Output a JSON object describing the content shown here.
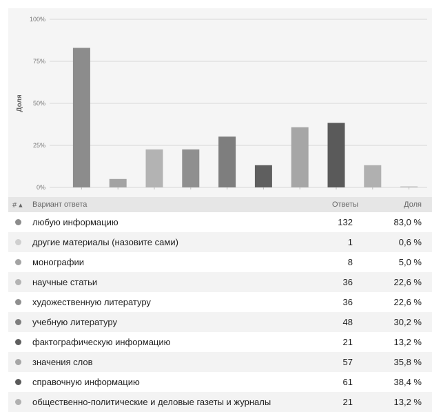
{
  "colors": {
    "chart_bg": "#f5f5f5",
    "grid": "#d6d6d6",
    "header_bg": "#e6e6e6"
  },
  "chart_data": {
    "type": "bar",
    "ylabel": "Доля",
    "ylim": [
      0,
      100
    ],
    "yticks": [
      "0%",
      "25%",
      "50%",
      "75%",
      "100%"
    ],
    "grid": true,
    "categories": [
      "любую информацию",
      "другие материалы (назовите сами)",
      "монографии",
      "научные статьи",
      "художественную литературу",
      "учебную литературу",
      "фактографическую информацию",
      "значения слов",
      "справочную информацию",
      "общественно-политические и деловые газеты и журналы"
    ],
    "values": [
      83.0,
      0.6,
      5.0,
      22.6,
      22.6,
      30.2,
      13.2,
      35.8,
      38.4,
      13.2
    ],
    "bar_order": [
      0,
      2,
      3,
      4,
      5,
      6,
      7,
      8,
      9,
      1
    ],
    "bar_colors": [
      "#8c8c8c",
      "#bdbdbd",
      "#a3a3a3",
      "#b3b3b3",
      "#8f8f8f",
      "#7e7e7e",
      "#5f5f5f",
      "#a6a6a6",
      "#5a5a5a",
      "#b0b0b0"
    ]
  },
  "table": {
    "header": {
      "num": "# ▴",
      "option": "Вариант ответа",
      "responses": "Ответы",
      "share": "Доля"
    },
    "rows": [
      {
        "label": "любую информацию",
        "responses": "132",
        "share": "83,0 %",
        "dot": "#8c8c8c"
      },
      {
        "label": "другие материалы (назовите сами)",
        "responses": "1",
        "share": "0,6 %",
        "dot": "#cfcfcf"
      },
      {
        "label": "монографии",
        "responses": "8",
        "share": "5,0 %",
        "dot": "#a3a3a3"
      },
      {
        "label": "научные статьи",
        "responses": "36",
        "share": "22,6 %",
        "dot": "#b3b3b3"
      },
      {
        "label": "художественную литературу",
        "responses": "36",
        "share": "22,6 %",
        "dot": "#8f8f8f"
      },
      {
        "label": "учебную литературу",
        "responses": "48",
        "share": "30,2 %",
        "dot": "#7e7e7e"
      },
      {
        "label": "фактографическую информацию",
        "responses": "21",
        "share": "13,2 %",
        "dot": "#5f5f5f"
      },
      {
        "label": "значения слов",
        "responses": "57",
        "share": "35,8 %",
        "dot": "#a6a6a6"
      },
      {
        "label": "справочную информацию",
        "responses": "61",
        "share": "38,4 %",
        "dot": "#5a5a5a"
      },
      {
        "label": "общественно-политические и деловые газеты и журналы",
        "responses": "21",
        "share": "13,2 %",
        "dot": "#b0b0b0"
      }
    ]
  }
}
